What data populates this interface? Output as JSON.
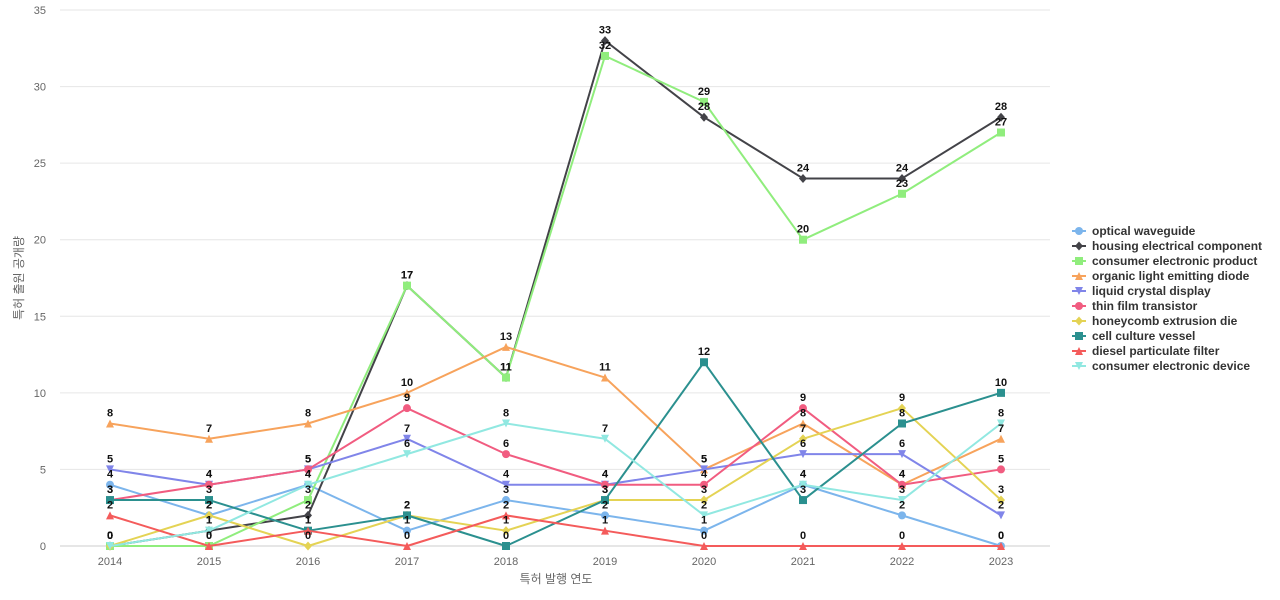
{
  "chart_data": {
    "type": "line",
    "xlabel": "특허 발행 연도",
    "ylabel": "특허 출원 공개량",
    "ylim": [
      0,
      35
    ],
    "yticks": [
      0,
      5,
      10,
      15,
      20,
      25,
      30,
      35
    ],
    "grid": true,
    "legend_position": "right",
    "x": [
      2014,
      2015,
      2016,
      2017,
      2018,
      2019,
      2020,
      2021,
      2022,
      2023
    ],
    "series": [
      {
        "name": "optical waveguide",
        "color": "#7cb5ec",
        "marker": "circle",
        "values": [
          4,
          2,
          4,
          1,
          3,
          2,
          1,
          4,
          2,
          0
        ]
      },
      {
        "name": "housing electrical component",
        "color": "#434348",
        "marker": "diamond",
        "values": [
          0,
          1,
          2,
          17,
          11,
          33,
          28,
          24,
          24,
          28
        ]
      },
      {
        "name": "consumer electronic product",
        "color": "#90ed7d",
        "marker": "square",
        "values": [
          0,
          0,
          3,
          17,
          11,
          32,
          29,
          20,
          23,
          27
        ]
      },
      {
        "name": "organic light emitting diode",
        "color": "#f7a35c",
        "marker": "triangle",
        "values": [
          8,
          7,
          8,
          10,
          13,
          11,
          5,
          8,
          4,
          7
        ]
      },
      {
        "name": "liquid crystal display",
        "color": "#8085e9",
        "marker": "triangle-down",
        "values": [
          5,
          4,
          5,
          7,
          4,
          4,
          5,
          6,
          6,
          2
        ]
      },
      {
        "name": "thin film transistor",
        "color": "#f15c80",
        "marker": "circle",
        "values": [
          3,
          4,
          5,
          9,
          6,
          4,
          4,
          9,
          4,
          5
        ]
      },
      {
        "name": "honeycomb extrusion die",
        "color": "#e4d354",
        "marker": "diamond",
        "values": [
          0,
          2,
          0,
          2,
          1,
          3,
          3,
          7,
          9,
          3
        ]
      },
      {
        "name": "cell culture vessel",
        "color": "#2b908f",
        "marker": "square",
        "values": [
          3,
          3,
          1,
          2,
          0,
          3,
          12,
          3,
          8,
          10
        ]
      },
      {
        "name": "diesel particulate filter",
        "color": "#f45b5b",
        "marker": "triangle",
        "values": [
          2,
          0,
          1,
          0,
          2,
          1,
          0,
          0,
          0,
          0
        ]
      },
      {
        "name": "consumer electronic device",
        "color": "#91e8e1",
        "marker": "triangle-down",
        "values": [
          0,
          1,
          4,
          6,
          8,
          7,
          2,
          4,
          3,
          8
        ]
      }
    ]
  }
}
